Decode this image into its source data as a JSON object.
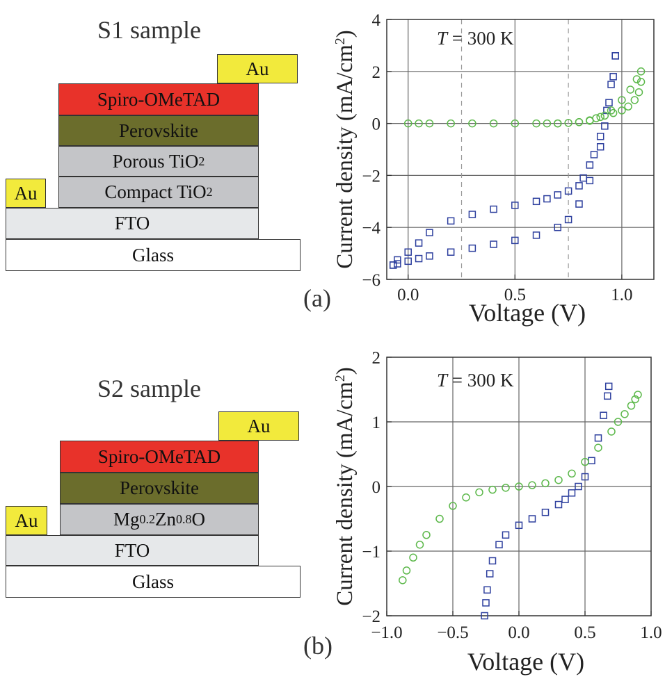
{
  "panel_a": {
    "sample_title": "S1 sample",
    "label": "(a)",
    "stack": {
      "au_top": "Au",
      "spiro": "Spiro-OMeTAD",
      "perovskite": "Perovskite",
      "porous_base": "Porous TiO",
      "porous_sub": "2",
      "compact_base": "Compact TiO",
      "compact_sub": "2",
      "au_left": "Au",
      "fto": "FTO",
      "glass": "Glass"
    },
    "colors": {
      "au": "#f2ea3c",
      "spiro": "#e8322a",
      "perovskite": "#6b6d2c",
      "tio2": "#c4c5c8",
      "fto": "#e6e8ea",
      "glass": "#ffffff"
    }
  },
  "panel_b": {
    "sample_title": "S2 sample",
    "label": "(b)",
    "stack": {
      "au_top": "Au",
      "spiro": "Spiro-OMeTAD",
      "perovskite": "Perovskite",
      "mgzno_1": "Mg",
      "mgzno_2": "0.2",
      "mgzno_3": "Zn",
      "mgzno_4": "0.8",
      "mgzno_5": "O",
      "au_left": "Au",
      "fto": "FTO",
      "glass": "Glass"
    }
  },
  "chart_data": [
    {
      "type": "scatter",
      "panel": "a",
      "annotation_T": "T",
      "annotation_rest": " = 300 K",
      "xlabel": "Voltage (V)",
      "ylabel": "Current density (mA/cm",
      "ylabel_sup": "2",
      "ylabel_close": ")",
      "xlim": [
        -0.1,
        1.15
      ],
      "ylim": [
        -6,
        4
      ],
      "xticks": [
        0.0,
        0.5,
        1.0
      ],
      "xtick_labels": [
        "0.0",
        "0.5",
        "1.0"
      ],
      "yticks": [
        -6,
        -4,
        -2,
        0,
        2,
        4
      ],
      "ytick_labels": [
        "−6",
        "−4",
        "−2",
        "0",
        "2",
        "4"
      ],
      "grid": true,
      "dashed_vlines": [
        0.25,
        0.75
      ],
      "series": [
        {
          "color": "#2d3f9e",
          "marker": "square",
          "x": [
            -0.07,
            -0.05,
            0.0,
            0.05,
            0.1,
            0.2,
            0.3,
            0.4,
            0.5,
            0.6,
            0.7,
            0.75,
            0.8,
            0.85,
            0.9,
            0.92,
            0.94,
            0.96,
            0.97,
            0.97,
            0.95,
            0.93,
            0.9,
            0.87,
            0.85,
            0.82,
            0.8,
            0.75,
            0.7,
            0.65,
            0.6,
            0.5,
            0.4,
            0.3,
            0.2,
            0.1,
            0.05,
            0.0,
            -0.05,
            -0.07
          ],
          "y": [
            -5.45,
            -5.4,
            -5.3,
            -5.2,
            -5.1,
            -4.95,
            -4.8,
            -4.65,
            -4.5,
            -4.3,
            -4.0,
            -3.7,
            -3.1,
            -2.2,
            -0.9,
            -0.1,
            0.8,
            1.8,
            2.6,
            2.6,
            1.5,
            0.5,
            -0.5,
            -1.2,
            -1.6,
            -2.1,
            -2.4,
            -2.6,
            -2.75,
            -2.9,
            -3.0,
            -3.15,
            -3.3,
            -3.5,
            -3.75,
            -4.2,
            -4.6,
            -4.95,
            -5.25,
            -5.45
          ]
        },
        {
          "color": "#5cb84a",
          "marker": "circle",
          "x": [
            0.0,
            0.05,
            0.1,
            0.2,
            0.3,
            0.4,
            0.5,
            0.6,
            0.7,
            0.8,
            0.85,
            0.9,
            0.95,
            1.0,
            1.04,
            1.07,
            1.09,
            1.09,
            1.08,
            1.06,
            1.03,
            1.0,
            0.96,
            0.92,
            0.88,
            0.85,
            0.8,
            0.75,
            0.7,
            0.65
          ],
          "y": [
            0.0,
            0.0,
            0.0,
            0.0,
            0.0,
            0.0,
            0.0,
            0.0,
            0.0,
            0.05,
            0.1,
            0.25,
            0.5,
            0.9,
            1.3,
            1.7,
            2.0,
            1.6,
            1.2,
            0.9,
            0.65,
            0.5,
            0.4,
            0.3,
            0.2,
            0.12,
            0.05,
            0.02,
            0.0,
            0.0
          ]
        }
      ]
    },
    {
      "type": "scatter",
      "panel": "b",
      "annotation_T": "T",
      "annotation_rest": " = 300 K",
      "xlabel": "Voltage (V)",
      "ylabel": "Current density (mA/cm",
      "ylabel_sup": "2",
      "ylabel_close": ")",
      "xlim": [
        -1.0,
        1.0
      ],
      "ylim": [
        -2,
        2
      ],
      "xticks": [
        -1.0,
        -0.5,
        0.0,
        0.5,
        1.0
      ],
      "xtick_labels": [
        "−1.0",
        "−0.5",
        "0.0",
        "0.5",
        "1.0"
      ],
      "yticks": [
        -2,
        -1,
        0,
        1,
        2
      ],
      "ytick_labels": [
        "−2",
        "−1",
        "0",
        "1",
        "2"
      ],
      "grid": true,
      "series": [
        {
          "color": "#2d3f9e",
          "marker": "square",
          "x": [
            -0.26,
            -0.25,
            -0.24,
            -0.22,
            -0.2,
            -0.15,
            -0.1,
            0.0,
            0.1,
            0.2,
            0.3,
            0.35,
            0.4,
            0.45,
            0.5,
            0.55,
            0.6,
            0.64,
            0.67,
            0.68
          ],
          "y": [
            -2.0,
            -1.8,
            -1.6,
            -1.35,
            -1.15,
            -0.9,
            -0.75,
            -0.6,
            -0.5,
            -0.4,
            -0.28,
            -0.2,
            -0.1,
            0.0,
            0.15,
            0.4,
            0.75,
            1.1,
            1.4,
            1.55
          ]
        },
        {
          "color": "#5cb84a",
          "marker": "circle",
          "x": [
            -0.88,
            -0.85,
            -0.8,
            -0.75,
            -0.7,
            -0.6,
            -0.5,
            -0.4,
            -0.3,
            -0.2,
            -0.1,
            0.0,
            0.1,
            0.2,
            0.3,
            0.4,
            0.5,
            0.6,
            0.7,
            0.75,
            0.8,
            0.85,
            0.88,
            0.9
          ],
          "y": [
            -1.45,
            -1.3,
            -1.1,
            -0.9,
            -0.75,
            -0.5,
            -0.3,
            -0.17,
            -0.09,
            -0.05,
            -0.02,
            0.0,
            0.02,
            0.05,
            0.1,
            0.2,
            0.38,
            0.6,
            0.85,
            1.0,
            1.12,
            1.25,
            1.35,
            1.42
          ]
        }
      ]
    }
  ]
}
